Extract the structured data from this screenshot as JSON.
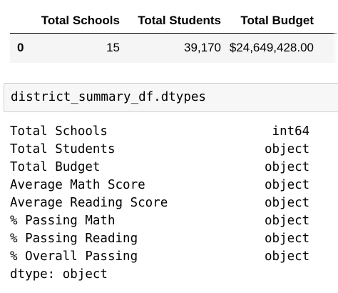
{
  "dataframe": {
    "columns": [
      "Total Schools",
      "Total Students",
      "Total Budget"
    ],
    "rows": [
      {
        "index": "0",
        "values": [
          "15",
          "39,170",
          "$24,649,428.00"
        ]
      }
    ]
  },
  "input_cell": {
    "code": "district_summary_df.dtypes"
  },
  "output": {
    "entries": [
      {
        "name": "Total Schools",
        "dtype": "int64"
      },
      {
        "name": "Total Students",
        "dtype": "object"
      },
      {
        "name": "Total Budget",
        "dtype": "object"
      },
      {
        "name": "Average Math Score",
        "dtype": "object"
      },
      {
        "name": "Average Reading Score",
        "dtype": "object"
      },
      {
        "name": "% Passing Math",
        "dtype": "object"
      },
      {
        "name": "% Passing Reading",
        "dtype": "object"
      },
      {
        "name": "% Overall Passing",
        "dtype": "object"
      }
    ],
    "footer": "dtype: object"
  }
}
